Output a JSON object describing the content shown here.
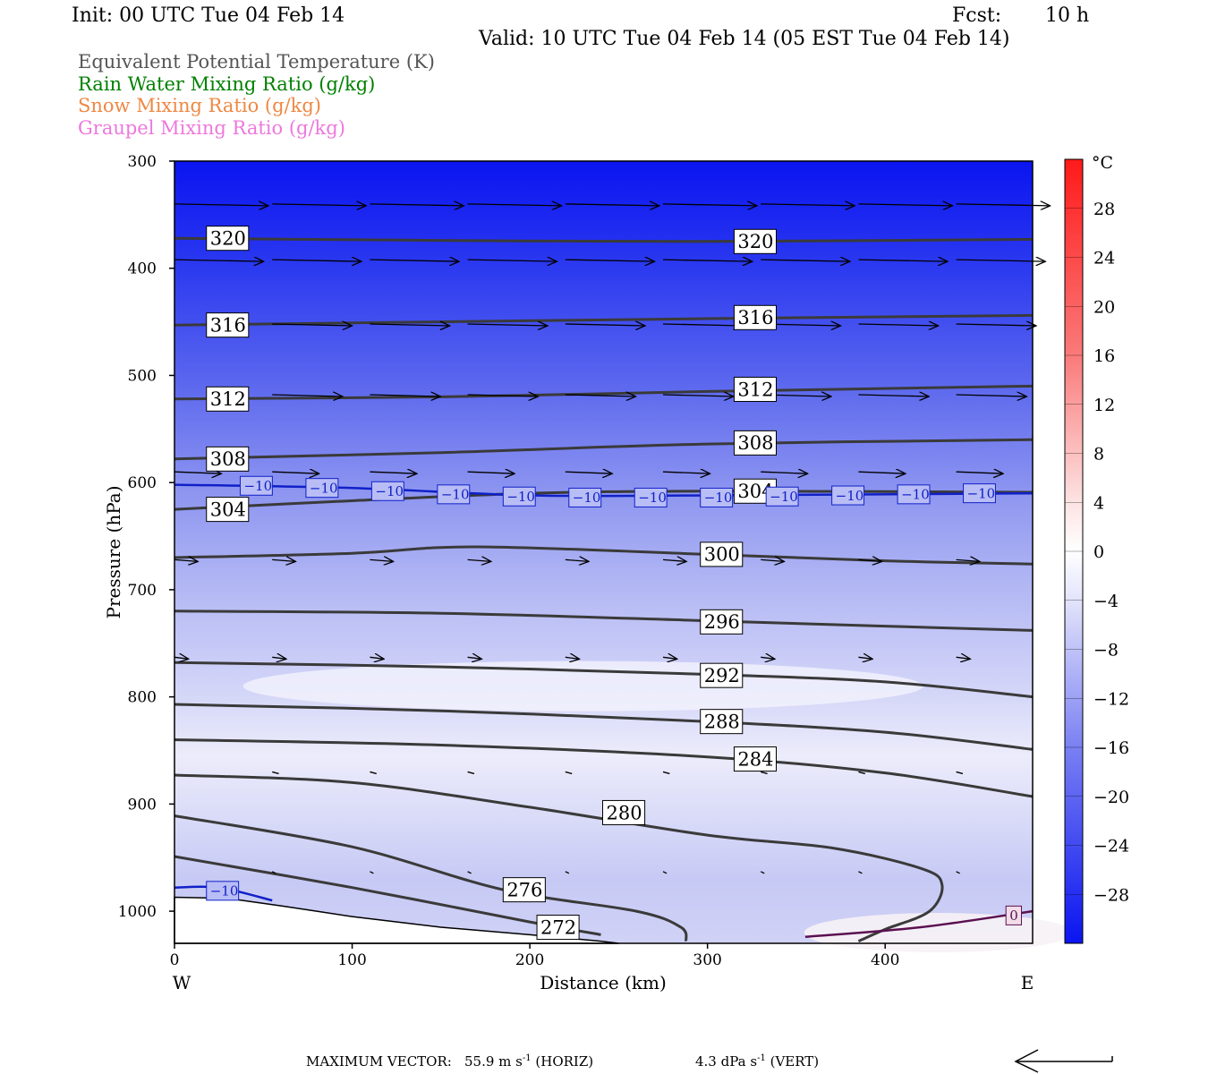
{
  "header": {
    "init": "Init: 00 UTC Tue 04 Feb 14",
    "fcst_label": "Fcst:",
    "fcst_value": "10 h",
    "valid": "Valid: 10 UTC Tue 04 Feb 14 (05 EST Tue 04 Feb 14)"
  },
  "legend": [
    {
      "label": "Equivalent Potential Temperature (K)",
      "color": "#555555"
    },
    {
      "label": "Rain Water Mixing Ratio (g/kg)",
      "color": "#008000"
    },
    {
      "label": "Snow Mixing Ratio (g/kg)",
      "color": "#ee8844"
    },
    {
      "label": "Graupel Mixing Ratio (g/kg)",
      "color": "#ee77dd"
    }
  ],
  "chart_data": {
    "type": "cross-section",
    "xlabel": "Distance (km)",
    "ylabel": "Pressure (hPa)",
    "xlim": [
      0,
      483
    ],
    "ylim": [
      300,
      1030
    ],
    "y_scale": "linear-pressure-inverted",
    "x_ticks": [
      "0",
      "100",
      "200",
      "300",
      "400"
    ],
    "y_ticks": [
      "300",
      "400",
      "500",
      "600",
      "700",
      "800",
      "900",
      "1000"
    ],
    "x_end_labels": {
      "left": "W",
      "right": "E"
    },
    "colorbar": {
      "unit": "°C",
      "tick_labels": [
        "28",
        "24",
        "20",
        "16",
        "12",
        "8",
        "4",
        "0",
        "−4",
        "−8",
        "−12",
        "−16",
        "−20",
        "−24",
        "−28"
      ],
      "range": [
        -32,
        32
      ]
    },
    "theta_e_contours": [
      {
        "value": 320,
        "label": "320",
        "points": [
          [
            0,
            372
          ],
          [
            150,
            374
          ],
          [
            300,
            375
          ],
          [
            483,
            373
          ]
        ]
      },
      {
        "value": 316,
        "label": "316",
        "points": [
          [
            0,
            453
          ],
          [
            150,
            450
          ],
          [
            300,
            447
          ],
          [
            483,
            444
          ]
        ]
      },
      {
        "value": 312,
        "label": "312",
        "points": [
          [
            0,
            522
          ],
          [
            150,
            520
          ],
          [
            300,
            515
          ],
          [
            483,
            510
          ]
        ]
      },
      {
        "value": 308,
        "label": "308",
        "points": [
          [
            0,
            578
          ],
          [
            150,
            572
          ],
          [
            300,
            564
          ],
          [
            483,
            560
          ]
        ]
      },
      {
        "value": 304,
        "label": "304",
        "points": [
          [
            0,
            625
          ],
          [
            100,
            617
          ],
          [
            200,
            610
          ],
          [
            300,
            608
          ],
          [
            483,
            609
          ]
        ]
      },
      {
        "value": 300,
        "label": "300",
        "points": [
          [
            0,
            670
          ],
          [
            100,
            666
          ],
          [
            170,
            660
          ],
          [
            300,
            667
          ],
          [
            400,
            673
          ],
          [
            483,
            676
          ]
        ]
      },
      {
        "value": 296,
        "label": "296",
        "points": [
          [
            0,
            720
          ],
          [
            150,
            722
          ],
          [
            300,
            729
          ],
          [
            400,
            734
          ],
          [
            483,
            738
          ]
        ]
      },
      {
        "value": 292,
        "label": "292",
        "points": [
          [
            0,
            768
          ],
          [
            150,
            772
          ],
          [
            300,
            779
          ],
          [
            400,
            786
          ],
          [
            483,
            800
          ]
        ]
      },
      {
        "value": 288,
        "label": "288",
        "points": [
          [
            0,
            807
          ],
          [
            150,
            813
          ],
          [
            300,
            823
          ],
          [
            400,
            833
          ],
          [
            483,
            849
          ]
        ]
      },
      {
        "value": 284,
        "label": "284",
        "points": [
          [
            0,
            840
          ],
          [
            150,
            845
          ],
          [
            300,
            856
          ],
          [
            400,
            871
          ],
          [
            483,
            893
          ]
        ]
      },
      {
        "value": 280,
        "label": "280",
        "points": [
          [
            0,
            873
          ],
          [
            100,
            880
          ],
          [
            200,
            903
          ],
          [
            300,
            929
          ],
          [
            370,
            941
          ],
          [
            420,
            960
          ],
          [
            432,
            975
          ],
          [
            425,
            1000
          ],
          [
            400,
            1017
          ],
          [
            385,
            1028
          ]
        ]
      },
      {
        "value": 276,
        "label": "276",
        "points": [
          [
            0,
            911
          ],
          [
            100,
            940
          ],
          [
            185,
            980
          ],
          [
            260,
            1000
          ],
          [
            285,
            1015
          ],
          [
            288,
            1028
          ]
        ]
      },
      {
        "value": 272,
        "label": "272",
        "points": [
          [
            0,
            949
          ],
          [
            100,
            978
          ],
          [
            200,
            1010
          ],
          [
            240,
            1022
          ]
        ]
      }
    ],
    "temperature_contours": [
      {
        "value": -10,
        "label": "−10",
        "points": [
          [
            0,
            602
          ],
          [
            100,
            605
          ],
          [
            200,
            612
          ],
          [
            300,
            612
          ],
          [
            483,
            610
          ]
        ]
      },
      {
        "value": -10,
        "label": "−10",
        "points": [
          [
            0,
            978
          ],
          [
            25,
            978
          ],
          [
            55,
            990
          ]
        ]
      },
      {
        "value": 0,
        "label": "0",
        "points": [
          [
            355,
            1024
          ],
          [
            420,
            1015
          ],
          [
            483,
            1000
          ]
        ]
      }
    ],
    "temperature_contour_labels": [
      {
        "value": "−10",
        "x": 37,
        "p": 603
      },
      {
        "value": "−10",
        "x": 74,
        "p": 605
      },
      {
        "value": "−10",
        "x": 111,
        "p": 608
      },
      {
        "value": "−10",
        "x": 148,
        "p": 611
      },
      {
        "value": "−10",
        "x": 185,
        "p": 613
      },
      {
        "value": "−10",
        "x": 222,
        "p": 614
      },
      {
        "value": "−10",
        "x": 259,
        "p": 614
      },
      {
        "value": "−10",
        "x": 296,
        "p": 614
      },
      {
        "value": "−10",
        "x": 333,
        "p": 613
      },
      {
        "value": "−10",
        "x": 370,
        "p": 612
      },
      {
        "value": "−10",
        "x": 407,
        "p": 611
      },
      {
        "value": "−10",
        "x": 444,
        "p": 610
      },
      {
        "value": "−10",
        "x": 18,
        "p": 981
      },
      {
        "value": "0",
        "x": 468,
        "p": 1004
      }
    ],
    "theta_e_label_positions": [
      {
        "value": "320",
        "x": 18,
        "p": 372
      },
      {
        "value": "320",
        "x": 315,
        "p": 375
      },
      {
        "value": "316",
        "x": 18,
        "p": 453
      },
      {
        "value": "316",
        "x": 315,
        "p": 446
      },
      {
        "value": "312",
        "x": 18,
        "p": 522
      },
      {
        "value": "312",
        "x": 315,
        "p": 513
      },
      {
        "value": "308",
        "x": 18,
        "p": 578
      },
      {
        "value": "308",
        "x": 315,
        "p": 563
      },
      {
        "value": "304",
        "x": 18,
        "p": 625
      },
      {
        "value": "304",
        "x": 315,
        "p": 608
      },
      {
        "value": "300",
        "x": 296,
        "p": 667
      },
      {
        "value": "296",
        "x": 296,
        "p": 730
      },
      {
        "value": "292",
        "x": 296,
        "p": 780
      },
      {
        "value": "288",
        "x": 296,
        "p": 823
      },
      {
        "value": "284",
        "x": 315,
        "p": 858
      },
      {
        "value": "280",
        "x": 241,
        "p": 908
      },
      {
        "value": "276",
        "x": 185,
        "p": 980
      },
      {
        "value": "272",
        "x": 204,
        "p": 1015
      }
    ],
    "wind_vector_rows": [
      {
        "p": 340,
        "x": [
          0,
          55,
          110,
          165,
          220,
          275,
          330,
          385,
          440
        ],
        "length": 1.0
      },
      {
        "p": 392,
        "x": [
          0,
          55,
          110,
          165,
          220,
          275,
          330,
          385,
          440
        ],
        "length": 0.95
      },
      {
        "p": 452,
        "x": [
          55,
          110,
          165,
          220,
          275,
          330,
          385,
          440
        ],
        "length": 0.85
      },
      {
        "p": 518,
        "x": [
          55,
          110,
          165,
          220,
          275,
          330,
          385,
          440
        ],
        "length": 0.75
      },
      {
        "p": 590,
        "x": [
          0,
          55,
          110,
          165,
          220,
          275,
          330,
          385,
          440
        ],
        "length": 0.5
      },
      {
        "p": 672,
        "x": [
          0,
          55,
          110,
          165,
          220,
          275,
          330,
          385,
          440
        ],
        "length": 0.25
      },
      {
        "p": 763,
        "x": [
          0,
          55,
          110,
          165,
          220,
          275,
          330,
          385,
          440
        ],
        "length": 0.15
      },
      {
        "p": 870,
        "x": [
          55,
          110,
          165,
          220,
          275,
          330,
          385,
          440
        ],
        "length": 0.07
      },
      {
        "p": 963,
        "x": [
          55,
          110,
          165,
          220,
          275,
          330,
          385,
          440
        ],
        "length": 0.03
      }
    ],
    "terrain": [
      [
        0,
        987
      ],
      [
        30,
        988
      ],
      [
        60,
        995
      ],
      [
        100,
        1005
      ],
      [
        150,
        1015
      ],
      [
        200,
        1022
      ],
      [
        240,
        1028
      ],
      [
        250,
        1030
      ]
    ]
  },
  "footer": {
    "max_vector_label": "MAXIMUM VECTOR:",
    "horiz_value": "55.9 m s",
    "horiz_unit": "(HORIZ)",
    "vert_value": "4.3 dPa s",
    "vert_unit": "(VERT)",
    "exponent": "-1"
  }
}
